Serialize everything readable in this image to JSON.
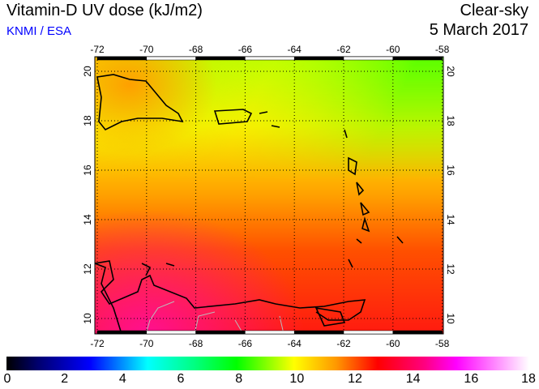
{
  "header": {
    "title": "Vitamin-D UV dose (kJ/m2)",
    "credit": "KNMI / ESA",
    "condition": "Clear-sky",
    "date": "5 March 2017"
  },
  "map": {
    "lon_ticks": [
      "-72",
      "-70",
      "-68",
      "-66",
      "-64",
      "-62",
      "-60",
      "-58"
    ],
    "lat_ticks": [
      "10",
      "12",
      "14",
      "16",
      "18",
      "20"
    ],
    "lon_range": [
      -72,
      -58
    ],
    "lat_range": [
      9.5,
      20.6
    ]
  },
  "colorbar": {
    "labels": [
      "0",
      "2",
      "4",
      "6",
      "8",
      "10",
      "12",
      "14",
      "16",
      "18"
    ],
    "range": [
      0,
      18
    ],
    "colors": {
      "low": "#000000",
      "blue": "#0000ff",
      "cyan": "#00ffff",
      "green": "#00ff00",
      "yellow": "#ffff00",
      "red": "#ff0000",
      "magenta": "#ff00ff",
      "high": "#ffffff"
    }
  }
}
